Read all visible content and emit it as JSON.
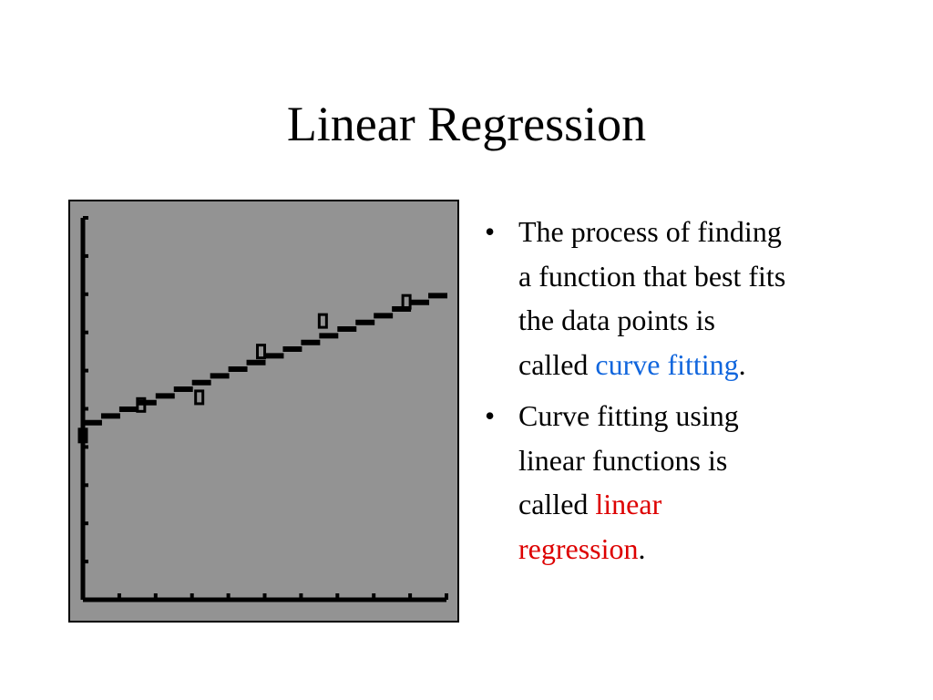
{
  "slide": {
    "title": "Linear Regression",
    "bullets": [
      {
        "lines": [
          "The process of finding",
          "a function that best fits",
          "the data points is"
        ],
        "prefix": "called ",
        "term": "curve fitting",
        "term_color": "#1166dd",
        "suffix": "."
      },
      {
        "lines": [
          "Curve fitting using",
          "linear functions is"
        ],
        "prefix": "called ",
        "term": "linear",
        "term2": "regression",
        "term_color": "#dd0000",
        "suffix": "."
      }
    ],
    "bullet_symbol": "•"
  },
  "chart_data": {
    "type": "scatter",
    "background": "#939393",
    "mark_color": "#000000",
    "x_ticks": 10,
    "y_ticks": 10,
    "xlim": [
      0,
      10
    ],
    "ylim": [
      0,
      10
    ],
    "points": [
      {
        "x": 0,
        "y": 4.3
      },
      {
        "x": 1.6,
        "y": 5.1
      },
      {
        "x": 3.2,
        "y": 5.3
      },
      {
        "x": 4.9,
        "y": 6.5
      },
      {
        "x": 6.6,
        "y": 7.3
      },
      {
        "x": 8.9,
        "y": 7.8
      }
    ],
    "regression": {
      "intercept": 4.55,
      "slope": 0.35,
      "x": [
        0,
        10
      ]
    }
  }
}
